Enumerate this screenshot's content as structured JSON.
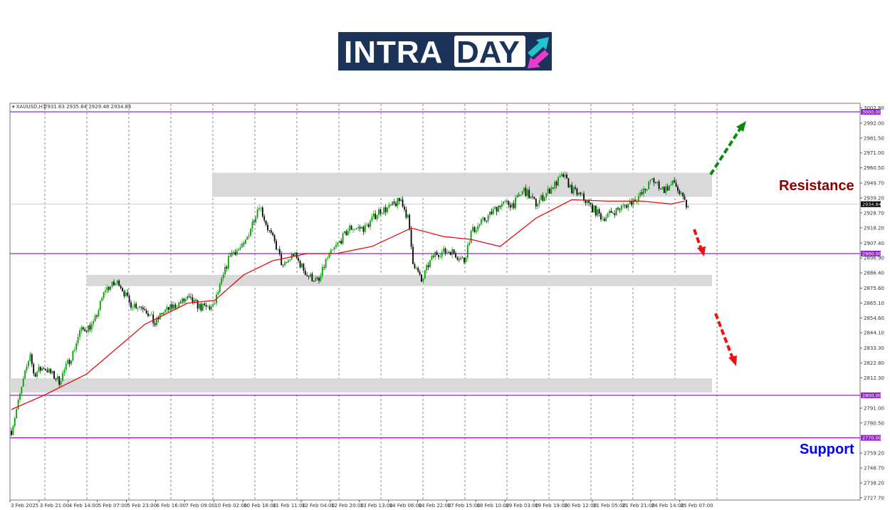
{
  "logo": {
    "text_part1": "INTRA",
    "text_part2": "DAY",
    "colors": {
      "background": "#1b3358",
      "arrow_up": "#22c4d0",
      "arrow_down": "#e83ccd"
    }
  },
  "chart_data": {
    "type": "candlestick",
    "symbol_header": "XAUUSD,H1",
    "ohlc_header": "2931.63 2935.84 2929.48 2934.84",
    "current_price": "2934.84",
    "ylim": [
      2727.7,
      3002.8
    ],
    "y_ticks": [
      "3002.80",
      "2992.00",
      "2981.50",
      "2971.00",
      "2960.50",
      "2949.70",
      "2939.20",
      "2928.70",
      "2918.20",
      "2907.40",
      "2896.90",
      "2886.40",
      "2875.60",
      "2865.10",
      "2854.60",
      "2844.10",
      "2833.30",
      "2822.80",
      "2812.30",
      "2791.00",
      "2780.50",
      "2759.20",
      "2748.70",
      "2738.20",
      "2727.70"
    ],
    "x_ticks": [
      "3 Feb 2025",
      "3 Feb 21:00",
      "4 Feb 14:00",
      "5 Feb 07:00",
      "5 Feb 23:00",
      "6 Feb 16:00",
      "7 Feb 09:00",
      "10 Feb 02:00",
      "10 Feb 18:00",
      "11 Feb 11:00",
      "12 Feb 04:00",
      "12 Feb 20:00",
      "13 Feb 13:00",
      "14 Feb 06:00",
      "14 Feb 22:00",
      "17 Feb 15:00",
      "18 Feb 10:00",
      "19 Feb 03:00",
      "19 Feb 19:00",
      "20 Feb 12:00",
      "21 Feb 05:00",
      "21 Feb 21:00",
      "24 Feb 14:00",
      "25 Feb 07:00"
    ],
    "price_path_bar_close": [
      [
        0,
        2775
      ],
      [
        5,
        2800
      ],
      [
        11,
        2830
      ],
      [
        13,
        2815
      ],
      [
        19,
        2820
      ],
      [
        28,
        2810
      ],
      [
        36,
        2830
      ],
      [
        40,
        2845
      ],
      [
        48,
        2850
      ],
      [
        55,
        2875
      ],
      [
        63,
        2880
      ],
      [
        69,
        2865
      ],
      [
        78,
        2862
      ],
      [
        84,
        2850
      ],
      [
        88,
        2858
      ],
      [
        94,
        2862
      ],
      [
        103,
        2868
      ],
      [
        111,
        2862
      ],
      [
        118,
        2862
      ],
      [
        123,
        2880
      ],
      [
        128,
        2900
      ],
      [
        136,
        2905
      ],
      [
        145,
        2935
      ],
      [
        150,
        2918
      ],
      [
        155,
        2905
      ],
      [
        159,
        2890
      ],
      [
        165,
        2900
      ],
      [
        173,
        2885
      ],
      [
        180,
        2880
      ],
      [
        184,
        2895
      ],
      [
        190,
        2905
      ],
      [
        198,
        2918
      ],
      [
        207,
        2918
      ],
      [
        215,
        2930
      ],
      [
        221,
        2932
      ],
      [
        228,
        2938
      ],
      [
        232,
        2925
      ],
      [
        235,
        2895
      ],
      [
        240,
        2880
      ],
      [
        244,
        2892
      ],
      [
        248,
        2900
      ],
      [
        257,
        2902
      ],
      [
        265,
        2895
      ],
      [
        269,
        2915
      ],
      [
        278,
        2925
      ],
      [
        286,
        2935
      ],
      [
        294,
        2935
      ],
      [
        300,
        2945
      ],
      [
        307,
        2935
      ],
      [
        315,
        2945
      ],
      [
        323,
        2955
      ],
      [
        328,
        2945
      ],
      [
        334,
        2940
      ],
      [
        340,
        2932
      ],
      [
        346,
        2925
      ],
      [
        353,
        2930
      ],
      [
        361,
        2935
      ],
      [
        369,
        2942
      ],
      [
        375,
        2952
      ],
      [
        382,
        2945
      ],
      [
        388,
        2950
      ],
      [
        392,
        2940
      ],
      [
        396,
        2932
      ]
    ],
    "moving_average_bar_value": [
      [
        0,
        2790
      ],
      [
        19,
        2800
      ],
      [
        44,
        2815
      ],
      [
        78,
        2850
      ],
      [
        103,
        2865
      ],
      [
        119,
        2867
      ],
      [
        136,
        2885
      ],
      [
        153,
        2895
      ],
      [
        173,
        2900
      ],
      [
        190,
        2900
      ],
      [
        211,
        2905
      ],
      [
        234,
        2918
      ],
      [
        253,
        2912
      ],
      [
        269,
        2910
      ],
      [
        286,
        2905
      ],
      [
        307,
        2925
      ],
      [
        328,
        2938
      ],
      [
        349,
        2937
      ],
      [
        369,
        2937
      ],
      [
        386,
        2935
      ],
      [
        394,
        2937
      ]
    ],
    "levels": [
      {
        "price": 3000,
        "label": "3000.00"
      },
      {
        "price": 2900,
        "label": "2900.00"
      },
      {
        "price": 2800,
        "label": "2800.00"
      },
      {
        "price": 2770,
        "label": "2770.00"
      }
    ],
    "zones": [
      {
        "from": 2940,
        "to": 2957
      },
      {
        "from": 2877,
        "to": 2885
      },
      {
        "from": 2802,
        "to": 2812
      }
    ],
    "annotations": {
      "resistance": "Resistance",
      "support": "Support"
    },
    "colors": {
      "level": "#9b1fd6",
      "ma": "#e01010",
      "bull": "#00a000",
      "bear": "#000000",
      "resistance": "#8b0000",
      "support": "#0000ee",
      "arrow_up": "#0a8a0a",
      "arrow_down": "#ee1111",
      "zone": "#d9d9d9"
    }
  }
}
